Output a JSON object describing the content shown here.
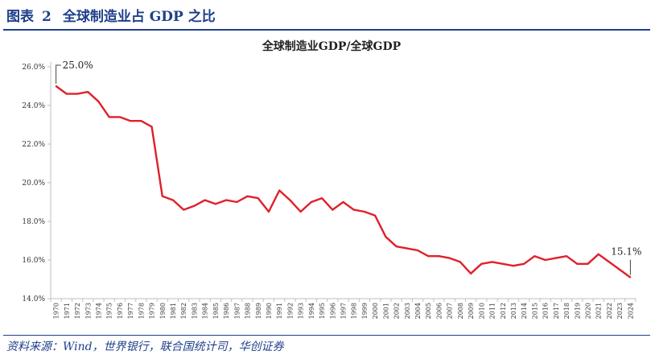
{
  "header": {
    "label": "图表",
    "number": "2",
    "title": "全球制造业占 GDP 之比"
  },
  "footer": {
    "source": "资料来源：Wind，世界银行，联合国统计司，华创证券"
  },
  "colors": {
    "series": "#e0202a",
    "header": "#1f3f8a"
  },
  "chart_data": {
    "type": "line",
    "title": "全球制造业GDP/全球GDP",
    "xlabel": "",
    "ylabel": "",
    "ylim": [
      0.14,
      0.26
    ],
    "yticks": [
      "14.0%",
      "16.0%",
      "18.0%",
      "20.0%",
      "22.0%",
      "24.0%",
      "26.0%"
    ],
    "grid": false,
    "legend": "none",
    "x": [
      1970,
      1971,
      1972,
      1973,
      1974,
      1975,
      1976,
      1977,
      1978,
      1979,
      1980,
      1981,
      1982,
      1983,
      1984,
      1985,
      1986,
      1987,
      1988,
      1989,
      1990,
      1991,
      1992,
      1993,
      1994,
      1995,
      1996,
      1997,
      1998,
      1999,
      2000,
      2001,
      2002,
      2003,
      2004,
      2005,
      2006,
      2007,
      2008,
      2009,
      2010,
      2011,
      2012,
      2013,
      2014,
      2015,
      2016,
      2017,
      2018,
      2019,
      2020,
      2021,
      2022,
      2023,
      2024
    ],
    "series": [
      {
        "values": [
          0.25,
          0.246,
          0.246,
          0.247,
          0.242,
          0.234,
          0.234,
          0.232,
          0.232,
          0.229,
          0.193,
          0.191,
          0.186,
          0.188,
          0.191,
          0.189,
          0.191,
          0.19,
          0.193,
          0.192,
          0.185,
          0.196,
          0.191,
          0.185,
          0.19,
          0.192,
          0.186,
          0.19,
          0.186,
          0.185,
          0.183,
          0.172,
          0.167,
          0.166,
          0.165,
          0.162,
          0.162,
          0.161,
          0.159,
          0.153,
          0.158,
          0.159,
          0.158,
          0.157,
          0.158,
          0.162,
          0.16,
          0.161,
          0.162,
          0.158,
          0.158,
          0.163,
          0.159,
          0.155,
          0.151
        ]
      }
    ],
    "annotations": [
      {
        "index": 0,
        "label": "25.0%"
      },
      {
        "index": 54,
        "label": "15.1%"
      }
    ]
  }
}
